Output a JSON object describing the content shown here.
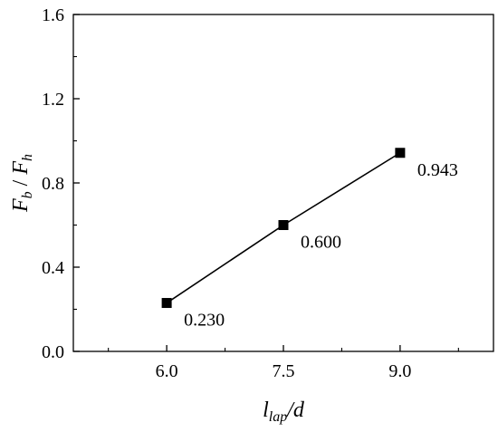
{
  "chart_data": {
    "type": "line",
    "title": "",
    "xlabel": {
      "base": "l",
      "sub": "lap",
      "tail": "/d"
    },
    "ylabel": {
      "num": "F",
      "num_sub": "b",
      "sep": " / ",
      "den": "F",
      "den_sub": "h"
    },
    "xlim": [
      4.8,
      10.2
    ],
    "ylim": [
      0.0,
      1.6
    ],
    "xticks": [
      6.0,
      7.5,
      9.0
    ],
    "xtick_labels": [
      "6.0",
      "7.5",
      "9.0"
    ],
    "xminor": [
      5.25,
      6.75,
      8.25,
      9.75
    ],
    "yticks": [
      0.0,
      0.4,
      0.8,
      1.2,
      1.6
    ],
    "ytick_labels": [
      "0.0",
      "0.4",
      "0.8",
      "1.2",
      "1.6"
    ],
    "yminor": [
      0.2,
      0.6,
      1.0,
      1.4
    ],
    "grid": false,
    "series": [
      {
        "x": [
          6.0,
          7.5,
          9.0
        ],
        "y": [
          0.23,
          0.6,
          0.943
        ],
        "labels": [
          "0.230",
          "0.600",
          "0.943"
        ],
        "marker": "square",
        "color": "#000000"
      }
    ]
  }
}
